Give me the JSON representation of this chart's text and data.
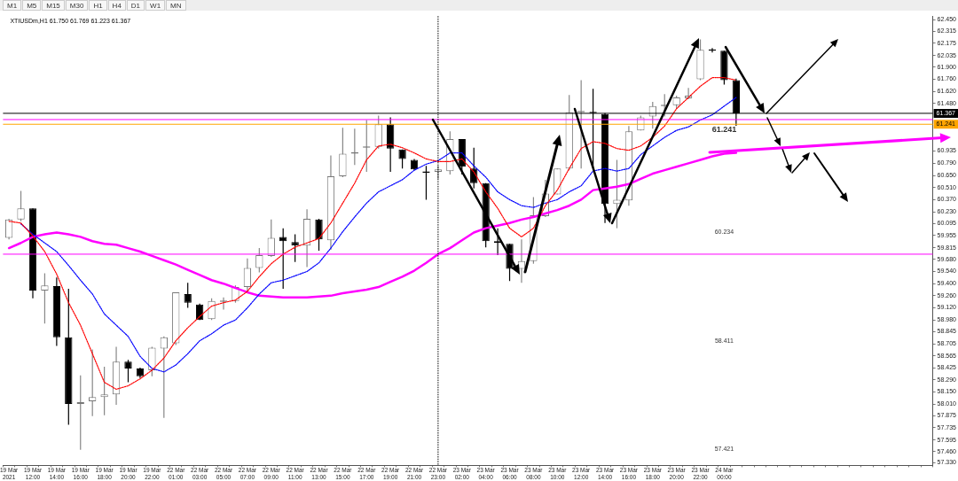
{
  "chart_data": {
    "type": "candlestick",
    "title": "XTIUSDm,H1 61.750 61.769 61.223 61.367",
    "categories": [
      "19 Mar 2021",
      null,
      "19 Mar 12:00",
      null,
      "19 Mar 14:00",
      null,
      "19 Mar 16:00",
      null,
      "19 Mar 18:00",
      null,
      "19 Mar 20:00",
      null,
      "19 Mar 22:00",
      null,
      "22 Mar 01:00",
      null,
      "22 Mar 03:00",
      null,
      "22 Mar 05:00",
      null,
      "22 Mar 07:00",
      null,
      "22 Mar 09:00",
      null,
      "22 Mar 11:00",
      null,
      "22 Mar 13:00",
      null,
      "22 Mar 15:00",
      null,
      "22 Mar 17:00",
      null,
      "22 Mar 19:00",
      null,
      "22 Mar 21:00",
      null,
      "22 Mar 23:00",
      null,
      "23 Mar 02:00",
      null,
      "23 Mar 04:00",
      null,
      "23 Mar 06:00",
      null,
      "23 Mar 08:00",
      null,
      "23 Mar 10:00",
      null,
      "23 Mar 12:00",
      null,
      "23 Mar 14:00",
      null,
      "23 Mar 16:00",
      null,
      "23 Mar 18:00",
      null,
      "23 Mar 20:00",
      null,
      "23 Mar 22:00",
      null,
      "24 Mar 00:00",
      null,
      null,
      null,
      null,
      null,
      null,
      null,
      null,
      null,
      null,
      null,
      null,
      null,
      null,
      null,
      null,
      null
    ],
    "ohlc": [
      [
        59.93,
        60.15,
        59.91,
        60.14
      ],
      [
        60.14,
        60.47,
        60.12,
        60.27
      ],
      [
        60.27,
        60.27,
        59.23,
        59.32
      ],
      [
        59.32,
        59.52,
        58.94,
        59.38
      ],
      [
        59.37,
        59.47,
        58.68,
        58.78
      ],
      [
        58.78,
        59.34,
        57.77,
        58.01
      ],
      [
        58.01,
        58.34,
        57.48,
        58.03
      ],
      [
        58.04,
        58.64,
        57.87,
        58.09
      ],
      [
        58.09,
        58.44,
        57.88,
        58.12
      ],
      [
        58.12,
        58.67,
        58.0,
        58.5
      ],
      [
        58.5,
        58.52,
        58.26,
        58.42
      ],
      [
        58.42,
        58.43,
        58.31,
        58.33
      ],
      [
        58.4,
        58.67,
        58.33,
        58.66
      ],
      [
        58.65,
        58.79,
        57.85,
        58.78
      ],
      [
        58.71,
        59.3,
        58.69,
        59.3
      ],
      [
        59.28,
        59.41,
        59.12,
        59.18
      ],
      [
        59.16,
        59.17,
        58.98,
        58.98
      ],
      [
        58.99,
        59.23,
        58.98,
        59.2
      ],
      [
        59.19,
        59.24,
        59.1,
        59.2
      ],
      [
        59.2,
        59.38,
        59.18,
        59.36
      ],
      [
        59.36,
        59.69,
        59.31,
        59.58
      ],
      [
        59.58,
        59.81,
        59.53,
        59.73
      ],
      [
        59.72,
        60.14,
        59.71,
        59.93
      ],
      [
        59.94,
        60.04,
        59.34,
        59.89
      ],
      [
        59.88,
        59.97,
        59.65,
        59.84
      ],
      [
        59.84,
        60.26,
        59.59,
        60.15
      ],
      [
        60.14,
        60.15,
        59.78,
        59.91
      ],
      [
        59.9,
        60.88,
        59.79,
        60.64
      ],
      [
        60.64,
        61.2,
        60.63,
        60.9
      ],
      [
        60.9,
        61.19,
        60.77,
        60.92
      ],
      [
        60.97,
        61.29,
        60.69,
        60.98
      ],
      [
        60.98,
        61.34,
        60.96,
        61.24
      ],
      [
        61.24,
        61.32,
        60.69,
        60.96
      ],
      [
        60.95,
        60.95,
        60.73,
        60.84
      ],
      [
        60.83,
        60.84,
        60.71,
        60.72
      ],
      [
        60.69,
        60.76,
        60.37,
        60.68
      ],
      [
        60.69,
        60.76,
        60.61,
        60.72
      ],
      [
        60.7,
        61.16,
        60.66,
        61.07
      ],
      [
        61.07,
        61.07,
        60.66,
        60.75
      ],
      [
        60.73,
        60.97,
        60.5,
        60.56
      ],
      [
        60.56,
        60.56,
        59.82,
        59.89
      ],
      [
        59.89,
        60.04,
        59.73,
        59.87
      ],
      [
        59.86,
        59.86,
        59.43,
        59.57
      ],
      [
        59.57,
        59.91,
        59.41,
        59.66
      ],
      [
        59.66,
        60.4,
        59.63,
        60.19
      ],
      [
        60.18,
        60.6,
        60.17,
        60.44
      ],
      [
        60.43,
        60.73,
        60.43,
        60.73
      ],
      [
        60.73,
        61.58,
        60.71,
        61.38
      ],
      [
        61.38,
        61.75,
        60.73,
        61.39
      ],
      [
        61.38,
        61.65,
        60.73,
        61.37
      ],
      [
        61.36,
        61.37,
        60.1,
        60.32
      ],
      [
        60.32,
        60.83,
        60.04,
        60.37
      ],
      [
        60.36,
        61.22,
        60.3,
        61.16
      ],
      [
        61.17,
        61.34,
        61.17,
        61.32
      ],
      [
        61.33,
        61.5,
        61.19,
        61.45
      ],
      [
        61.45,
        61.59,
        61.33,
        61.46
      ],
      [
        61.46,
        61.57,
        61.42,
        61.55
      ],
      [
        61.54,
        61.66,
        61.53,
        61.57
      ],
      [
        61.76,
        62.22,
        61.75,
        62.1
      ],
      [
        62.1,
        62.12,
        62.07,
        62.09
      ],
      [
        62.09,
        62.09,
        61.7,
        61.75
      ],
      [
        61.75,
        61.769,
        61.223,
        61.367
      ],
      null,
      null,
      null,
      null,
      null,
      null,
      null,
      null,
      null,
      null,
      null,
      null,
      null,
      null,
      null,
      null
    ],
    "series": [
      {
        "type": "line",
        "color": "#ff0000",
        "line_style": "dotted",
        "values": [
          60.12,
          60.1,
          59.95,
          59.77,
          59.51,
          59.18,
          58.92,
          58.59,
          58.26,
          58.18,
          58.22,
          58.3,
          58.4,
          58.54,
          58.74,
          58.89,
          59.02,
          59.14,
          59.18,
          59.21,
          59.31,
          59.48,
          59.63,
          59.74,
          59.82,
          59.87,
          59.92,
          60.1,
          60.33,
          60.56,
          60.83,
          60.99,
          61.01,
          60.97,
          60.91,
          60.84,
          60.81,
          60.81,
          60.84,
          60.69,
          60.46,
          60.27,
          60.04,
          59.94,
          60.04,
          60.3,
          60.48,
          60.73,
          60.96,
          61.04,
          61.02,
          60.96,
          60.94,
          60.99,
          61.09,
          61.22,
          61.42,
          61.55,
          61.68,
          61.78,
          61.78,
          61.75,
          null,
          null,
          null,
          null,
          null,
          null,
          null,
          null,
          null,
          null,
          null,
          null,
          null,
          null,
          null,
          null
        ]
      },
      {
        "type": "line",
        "color": "#0000ff",
        "line_style": "dotted",
        "values": [
          null,
          60.09,
          59.97,
          59.87,
          59.77,
          59.61,
          59.44,
          59.28,
          59.05,
          58.92,
          58.79,
          58.56,
          58.42,
          58.38,
          58.46,
          58.59,
          58.74,
          58.82,
          58.92,
          58.98,
          59.12,
          59.28,
          59.41,
          59.44,
          59.49,
          59.54,
          59.64,
          59.81,
          60.0,
          60.17,
          60.33,
          60.46,
          60.53,
          60.6,
          60.71,
          60.78,
          60.82,
          60.91,
          60.91,
          60.76,
          60.63,
          60.46,
          60.37,
          60.3,
          60.28,
          60.33,
          60.37,
          60.46,
          60.53,
          60.7,
          60.73,
          60.7,
          60.73,
          60.89,
          60.99,
          61.09,
          61.17,
          61.21,
          61.29,
          61.35,
          61.45,
          61.55,
          null,
          null,
          null,
          null,
          null,
          null,
          null,
          null,
          null,
          null,
          null,
          null,
          null,
          null,
          null,
          null
        ]
      },
      {
        "type": "line",
        "color": "#ff00ff",
        "line_style": "solid",
        "values": [
          59.81,
          59.87,
          59.94,
          59.97,
          59.99,
          59.97,
          59.94,
          59.89,
          59.86,
          59.85,
          59.81,
          59.77,
          59.72,
          59.67,
          59.62,
          59.56,
          59.5,
          59.44,
          59.4,
          59.35,
          59.3,
          59.26,
          59.25,
          59.24,
          59.24,
          59.24,
          59.25,
          59.26,
          59.29,
          59.31,
          59.33,
          59.36,
          59.42,
          59.48,
          59.55,
          59.64,
          59.74,
          59.81,
          59.9,
          59.99,
          60.04,
          60.07,
          60.1,
          60.14,
          60.17,
          60.21,
          60.25,
          60.3,
          60.37,
          60.48,
          60.5,
          60.52,
          60.55,
          60.61,
          60.67,
          60.71,
          60.75,
          60.79,
          60.83,
          60.87,
          60.9,
          60.91,
          null,
          null,
          null,
          null,
          null,
          null,
          null,
          null,
          null,
          null,
          null,
          null,
          null,
          null,
          null,
          null
        ]
      }
    ],
    "ylim": [
      57.3,
      62.49
    ],
    "yticks": [
      {
        "value": 62.45,
        "label": "62.450"
      },
      {
        "value": 62.315,
        "label": "62.315"
      },
      {
        "value": 62.175,
        "label": "62.175"
      },
      {
        "value": 62.035,
        "label": "62.035"
      },
      {
        "value": 61.9,
        "label": "61.900"
      },
      {
        "value": 61.76,
        "label": "61.760"
      },
      {
        "value": 61.62,
        "label": "61.620"
      },
      {
        "value": 61.48,
        "label": "61.480"
      },
      {
        "value": 60.935,
        "label": "60.935"
      },
      {
        "value": 60.79,
        "label": "60.790"
      },
      {
        "value": 60.65,
        "label": "60.650"
      },
      {
        "value": 60.51,
        "label": "60.510"
      },
      {
        "value": 60.37,
        "label": "60.370"
      },
      {
        "value": 60.23,
        "label": "60.230"
      },
      {
        "value": 60.095,
        "label": "60.095"
      },
      {
        "value": 59.955,
        "label": "59.955"
      },
      {
        "value": 59.815,
        "label": "59.815"
      },
      {
        "value": 59.68,
        "label": "59.680"
      },
      {
        "value": 59.54,
        "label": "59.540"
      },
      {
        "value": 59.4,
        "label": "59.400"
      },
      {
        "value": 59.26,
        "label": "59.260"
      },
      {
        "value": 59.12,
        "label": "59.120"
      },
      {
        "value": 58.98,
        "label": "58.980"
      },
      {
        "value": 58.845,
        "label": "58.845"
      },
      {
        "value": 58.705,
        "label": "58.705"
      },
      {
        "value": 58.565,
        "label": "58.565"
      },
      {
        "value": 58.425,
        "label": "58.425"
      },
      {
        "value": 58.29,
        "label": "58.290"
      },
      {
        "value": 58.15,
        "label": "58.150"
      },
      {
        "value": 58.01,
        "label": "58.010"
      },
      {
        "value": 57.875,
        "label": "57.875"
      },
      {
        "value": 57.735,
        "label": "57.735"
      },
      {
        "value": 57.595,
        "label": "57.595"
      },
      {
        "value": 57.46,
        "label": "57.460"
      },
      {
        "value": 57.33,
        "label": "57.330"
      }
    ],
    "ref_lines": [
      {
        "axis": "y",
        "value": 61.367,
        "label": "61.367",
        "color": "#000000"
      },
      {
        "axis": "y",
        "value": 61.295,
        "color": "#ff00ff"
      },
      {
        "axis": "y",
        "value": 61.241,
        "label": "61.241",
        "color": "#ffa500"
      },
      {
        "axis": "y",
        "value": 59.74,
        "color": "#ff00ff"
      },
      {
        "axis": "x",
        "value": "22 Mar 23:00",
        "color": "#000000",
        "line_style": "dotted"
      }
    ],
    "annotations": [
      "M1",
      "M5",
      "M15",
      "M30",
      "H1",
      "H4",
      "D1",
      "W1",
      "MN",
      {
        "text": "61.241",
        "y": 61.241
      },
      "60.234",
      "58.411",
      "57.421"
    ],
    "marker": "none",
    "legend": false
  }
}
